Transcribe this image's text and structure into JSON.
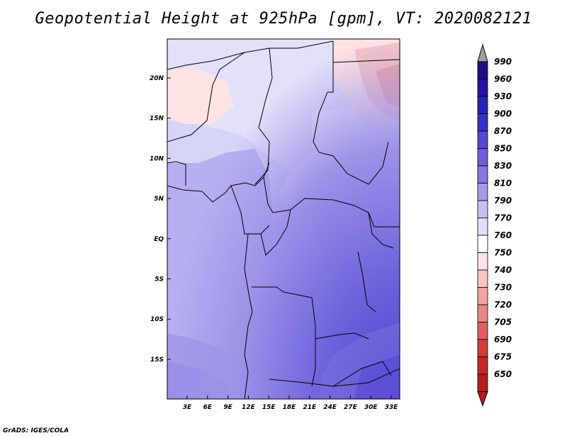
{
  "title": "Geopotential Height at 925hPa [gpm], VT: 2020082121",
  "credit": "GrADS: IGES/COLA",
  "map": {
    "lat_ticks": [
      "20N",
      "15N",
      "10N",
      "5N",
      "EQ",
      "5S",
      "10S",
      "15S"
    ],
    "lon_ticks": [
      "3E",
      "6E",
      "9E",
      "12E",
      "15E",
      "18E",
      "21E",
      "24E",
      "27E",
      "30E",
      "33E"
    ]
  },
  "colorbar": {
    "levels": [
      "990",
      "960",
      "930",
      "900",
      "870",
      "850",
      "830",
      "810",
      "790",
      "770",
      "760",
      "750",
      "740",
      "730",
      "720",
      "705",
      "690",
      "675",
      "650"
    ],
    "colors": [
      "#1b0e8a",
      "#2314a6",
      "#2a1fb8",
      "#3a2fc8",
      "#5548d2",
      "#6a5fdb",
      "#8478e2",
      "#a49bea",
      "#c6c1f2",
      "#e1def8",
      "#ffffff",
      "#fde3e3",
      "#f8c4c4",
      "#f2a3a3",
      "#ea8585",
      "#e05e5e",
      "#d33c3c",
      "#c42828",
      "#b51c1c"
    ],
    "top_arrow_color": "#a0a0a0",
    "bottom_arrow_color": "#b51c1c"
  }
}
